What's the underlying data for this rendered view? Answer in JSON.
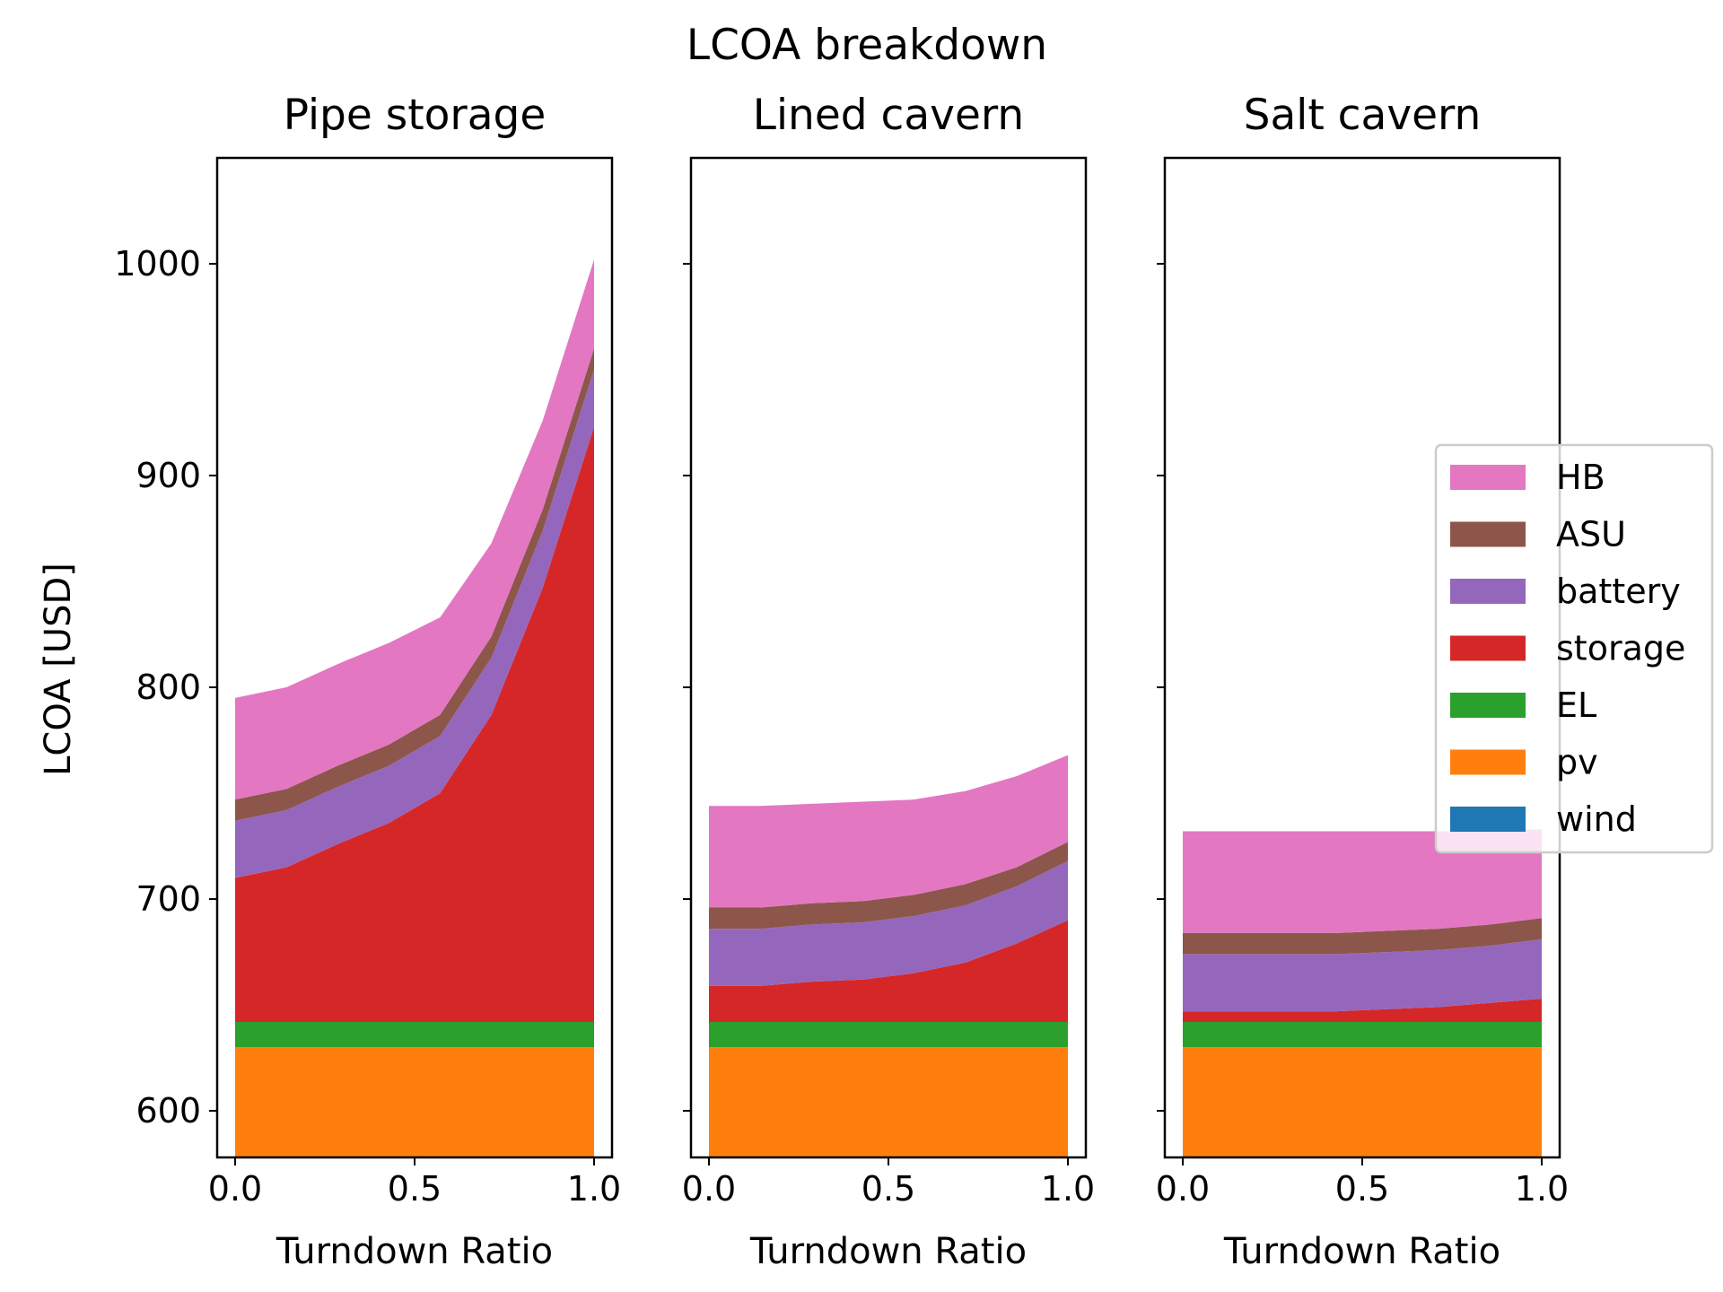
{
  "chart_data": {
    "type": "area",
    "title": "LCOA breakdown",
    "ylabel": "LCOA [USD]",
    "xlabel": "Turndown Ratio",
    "ylim": [
      578,
      1050
    ],
    "xlim": [
      -0.05,
      1.05
    ],
    "xticks": [
      0.0,
      0.5,
      1.0
    ],
    "xtick_labels": [
      "0.0",
      "0.5",
      "1.0"
    ],
    "yticks": [
      600,
      700,
      800,
      900,
      1000
    ],
    "ytick_labels": [
      "600",
      "700",
      "800",
      "900",
      "1000"
    ],
    "grid": false,
    "legend": {
      "placement": "right",
      "entries": [
        "HB",
        "ASU",
        "battery",
        "storage",
        "EL",
        "pv",
        "wind"
      ]
    },
    "series_colors": {
      "wind": "#1f77b4",
      "pv": "#ff7f0e",
      "EL": "#2ca02c",
      "storage": "#d62728",
      "battery": "#9467bd",
      "ASU": "#8c564b",
      "HB": "#e377c2"
    },
    "stack_order": [
      "wind",
      "pv",
      "EL",
      "storage",
      "battery",
      "ASU",
      "HB"
    ],
    "x": [
      0.0,
      0.143,
      0.286,
      0.429,
      0.571,
      0.714,
      0.857,
      1.0
    ],
    "panels": [
      {
        "title": "Pipe storage",
        "series": [
          {
            "name": "wind",
            "values": [
              0,
              0,
              0,
              0,
              0,
              0,
              0,
              0
            ]
          },
          {
            "name": "pv",
            "values": [
              630,
              630,
              630,
              630,
              630,
              630,
              630,
              630
            ]
          },
          {
            "name": "EL",
            "values": [
              12,
              12,
              12,
              12,
              12,
              12,
              12,
              12
            ]
          },
          {
            "name": "storage",
            "values": [
              68,
              73,
              84,
              94,
              108,
              145,
              205,
              281
            ]
          },
          {
            "name": "battery",
            "values": [
              27,
              27,
              27,
              27,
              27,
              27,
              27,
              27
            ]
          },
          {
            "name": "ASU",
            "values": [
              10,
              10,
              10,
              10,
              10,
              10,
              10,
              10
            ]
          },
          {
            "name": "HB",
            "values": [
              48,
              48,
              48,
              48,
              46,
              44,
              42,
              42
            ]
          }
        ]
      },
      {
        "title": "Lined cavern",
        "series": [
          {
            "name": "wind",
            "values": [
              0,
              0,
              0,
              0,
              0,
              0,
              0,
              0
            ]
          },
          {
            "name": "pv",
            "values": [
              630,
              630,
              630,
              630,
              630,
              630,
              630,
              630
            ]
          },
          {
            "name": "EL",
            "values": [
              12,
              12,
              12,
              12,
              12,
              12,
              12,
              12
            ]
          },
          {
            "name": "storage",
            "values": [
              17,
              17,
              19,
              20,
              23,
              28,
              37,
              48
            ]
          },
          {
            "name": "battery",
            "values": [
              27,
              27,
              27,
              27,
              27,
              27,
              27,
              28
            ]
          },
          {
            "name": "ASU",
            "values": [
              10,
              10,
              10,
              10,
              10,
              10,
              9,
              9
            ]
          },
          {
            "name": "HB",
            "values": [
              48,
              48,
              47,
              47,
              45,
              44,
              43,
              41
            ]
          }
        ]
      },
      {
        "title": "Salt cavern",
        "series": [
          {
            "name": "wind",
            "values": [
              0,
              0,
              0,
              0,
              0,
              0,
              0,
              0
            ]
          },
          {
            "name": "pv",
            "values": [
              630,
              630,
              630,
              630,
              630,
              630,
              630,
              630
            ]
          },
          {
            "name": "EL",
            "values": [
              12,
              12,
              12,
              12,
              12,
              12,
              12,
              12
            ]
          },
          {
            "name": "storage",
            "values": [
              5,
              5,
              5,
              5,
              6,
              7,
              9,
              11
            ]
          },
          {
            "name": "battery",
            "values": [
              27,
              27,
              27,
              27,
              27,
              27,
              27,
              28
            ]
          },
          {
            "name": "ASU",
            "values": [
              10,
              10,
              10,
              10,
              10,
              10,
              10,
              10
            ]
          },
          {
            "name": "HB",
            "values": [
              48,
              48,
              48,
              48,
              47,
              46,
              44,
              42
            ]
          }
        ]
      }
    ]
  }
}
